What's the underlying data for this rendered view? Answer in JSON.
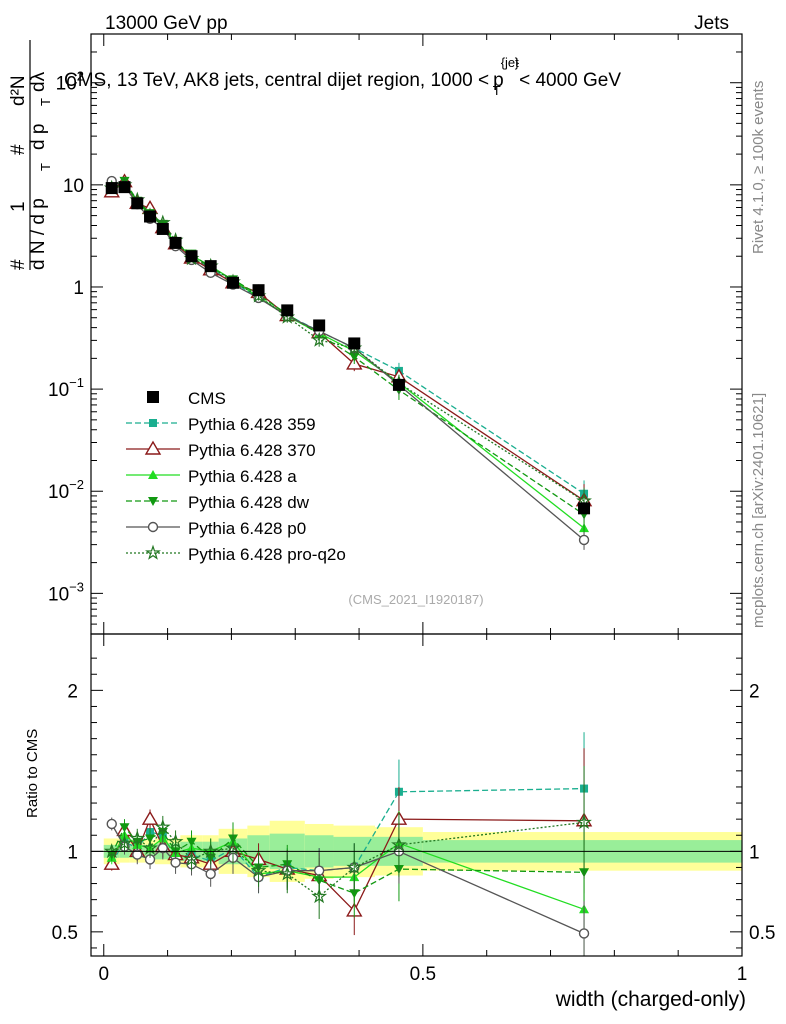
{
  "header": {
    "left": "13000 GeV pp",
    "right": "Jets",
    "rivet": "Rivet 4.1.0, ≥ 100k events",
    "mcplots": "mcplots.cern.ch [arXiv:2401.10621]",
    "analysis": "(CMS_2021_I1920187)"
  },
  "colors": {
    "CMS": "#000000",
    "p359": "#1aae8f",
    "p370": "#8b1a1a",
    "pa": "#22dd22",
    "pdw": "#119911",
    "pp0": "#555555",
    "pq2o": "#227722",
    "band_yellow": "#ffff99",
    "band_green": "#99ee99"
  },
  "chart_data": {
    "type": "line",
    "title": "CMS, 13 TeV, AK8 jets, central dijet region, 1000 < p_T^{jet} < 4000 GeV",
    "title_parts": {
      "main": "CMS, 13 TeV, AK8 jets, central dijet region, 1000 <",
      "p": "p",
      "sup": "{jet",
      "sub": "T",
      "mid": "}",
      "tail": "< 4000 GeV"
    },
    "xlabel": "width (charged-only)",
    "ylabel_main": {
      "num_a": "1",
      "den_a": "d N / d p",
      "sub_a": "T",
      "num_b": "d²N",
      "den_b": "d p",
      "sub_b": "T",
      "den_b2": "dλ",
      "hash": "#"
    },
    "ylabel_ratio": "Ratio to CMS",
    "xlim": [
      -0.02,
      1.0
    ],
    "ylim_main": [
      0.0004,
      300
    ],
    "ylim_ratio": [
      0.35,
      2.35
    ],
    "x_ticks": [
      {
        "v": 0,
        "label": "0"
      },
      {
        "v": 0.5,
        "label": "0.5"
      },
      {
        "v": 1,
        "label": "1"
      }
    ],
    "y_ticks_main": [
      {
        "v": 0.001,
        "base": "10",
        "exp": "−3",
        "label": ""
      },
      {
        "v": 0.01,
        "base": "10",
        "exp": "−2",
        "label": ""
      },
      {
        "v": 0.1,
        "base": "10",
        "exp": "−1",
        "label": ""
      },
      {
        "v": 1,
        "base": "",
        "exp": "",
        "label": "1"
      },
      {
        "v": 10,
        "base": "",
        "exp": "",
        "label": "10"
      },
      {
        "v": 100,
        "base": "10",
        "exp": "2",
        "label": ""
      }
    ],
    "y_ticks_ratio": [
      {
        "v": 0.5,
        "label": "0.5"
      },
      {
        "v": 1,
        "label": "1"
      },
      {
        "v": 2,
        "label": "2"
      }
    ],
    "x": [
      0.0125,
      0.0325,
      0.0525,
      0.0725,
      0.0925,
      0.1125,
      0.1375,
      0.1675,
      0.2025,
      0.2425,
      0.2875,
      0.3375,
      0.3925,
      0.4625,
      0.7525
    ],
    "bin_edges": [
      0.0,
      0.025,
      0.04,
      0.065,
      0.08,
      0.105,
      0.12,
      0.155,
      0.18,
      0.225,
      0.26,
      0.315,
      0.36,
      0.425,
      0.5,
      1.0
    ],
    "band_yellow": [
      0.08,
      0.07,
      0.07,
      0.07,
      0.08,
      0.08,
      0.1,
      0.1,
      0.14,
      0.16,
      0.19,
      0.17,
      0.16,
      0.15,
      0.12
    ],
    "band_green": [
      0.04,
      0.04,
      0.04,
      0.04,
      0.05,
      0.05,
      0.06,
      0.06,
      0.08,
      0.1,
      0.11,
      0.1,
      0.09,
      0.09,
      0.07
    ],
    "cms": [
      9.3,
      9.5,
      6.6,
      4.9,
      3.7,
      2.7,
      2.0,
      1.6,
      1.1,
      0.93,
      0.59,
      0.42,
      0.28,
      0.11,
      0.0068
    ],
    "series": [
      {
        "name": "Pythia 6.428 359",
        "key": "p359",
        "marker": "square",
        "dash": "6,3",
        "ratio": [
          0.93,
          1.06,
          1.02,
          1.12,
          1.1,
          0.96,
          0.98,
          0.94,
          1.02,
          0.84,
          0.9,
          0.88,
          0.9,
          1.37,
          1.39
        ],
        "ratio_err": [
          0.04,
          0.05,
          0.06,
          0.06,
          0.07,
          0.07,
          0.07,
          0.08,
          0.1,
          0.1,
          0.12,
          0.14,
          0.15,
          0.2,
          0.35
        ]
      },
      {
        "name": "Pythia 6.428 370",
        "key": "p370",
        "marker": "open-triangle",
        "dash": "",
        "ratio": [
          0.92,
          1.13,
          1.0,
          1.2,
          1.03,
          0.98,
          0.96,
          0.92,
          1.0,
          0.95,
          0.89,
          0.85,
          0.63,
          1.2,
          1.19
        ],
        "ratio_err": [
          0.04,
          0.05,
          0.06,
          0.06,
          0.07,
          0.07,
          0.07,
          0.08,
          0.1,
          0.1,
          0.12,
          0.14,
          0.15,
          0.2,
          0.45
        ]
      },
      {
        "name": "Pythia 6.428 a",
        "key": "pa",
        "marker": "triangle",
        "dash": "",
        "ratio": [
          0.96,
          1.1,
          1.04,
          1.02,
          1.08,
          0.99,
          1.02,
          1.0,
          1.06,
          0.86,
          0.88,
          0.84,
          0.84,
          1.05,
          0.64
        ],
        "ratio_err": [
          0.04,
          0.05,
          0.06,
          0.06,
          0.07,
          0.07,
          0.07,
          0.08,
          0.1,
          0.1,
          0.12,
          0.14,
          0.15,
          0.2,
          0.3
        ]
      },
      {
        "name": "Pythia 6.428 dw",
        "key": "pdw",
        "marker": "down-triangle",
        "dash": "6,3",
        "ratio": [
          0.98,
          1.15,
          1.06,
          1.08,
          1.12,
          1.0,
          1.06,
          0.96,
          1.08,
          0.9,
          0.92,
          0.82,
          0.74,
          0.89,
          0.87
        ],
        "ratio_err": [
          0.04,
          0.05,
          0.06,
          0.06,
          0.07,
          0.07,
          0.07,
          0.08,
          0.1,
          0.1,
          0.12,
          0.14,
          0.15,
          0.2,
          0.35
        ]
      },
      {
        "name": "Pythia 6.428 p0",
        "key": "pp0",
        "marker": "open-circle",
        "dash": "",
        "ratio": [
          1.17,
          1.03,
          0.98,
          0.95,
          1.02,
          0.93,
          0.92,
          0.86,
          0.96,
          0.84,
          0.88,
          0.88,
          0.9,
          1.0,
          0.49
        ],
        "ratio_err": [
          0.04,
          0.05,
          0.06,
          0.06,
          0.07,
          0.07,
          0.07,
          0.08,
          0.1,
          0.1,
          0.12,
          0.14,
          0.15,
          0.2,
          0.2
        ]
      },
      {
        "name": "Pythia 6.428 pro-q2o",
        "key": "pq2o",
        "marker": "open-star",
        "dash": "2,2",
        "ratio": [
          1.0,
          1.05,
          1.08,
          1.02,
          1.15,
          1.06,
          0.95,
          1.0,
          1.02,
          0.88,
          0.86,
          0.72,
          0.9,
          1.04,
          1.18
        ],
        "ratio_err": [
          0.04,
          0.05,
          0.06,
          0.06,
          0.07,
          0.07,
          0.07,
          0.08,
          0.1,
          0.1,
          0.12,
          0.14,
          0.15,
          0.2,
          0.35
        ]
      }
    ],
    "legend_position": "lower-left"
  }
}
